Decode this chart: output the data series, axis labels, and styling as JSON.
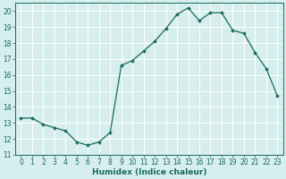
{
  "x": [
    0,
    1,
    2,
    3,
    4,
    5,
    6,
    7,
    8,
    9,
    10,
    11,
    12,
    13,
    14,
    15,
    16,
    17,
    18,
    19,
    20,
    21,
    22,
    23
  ],
  "y": [
    13.3,
    13.3,
    12.9,
    12.7,
    12.5,
    11.8,
    11.6,
    11.8,
    12.4,
    16.6,
    16.9,
    17.5,
    18.1,
    18.9,
    19.8,
    20.2,
    19.4,
    19.9,
    19.9,
    18.8,
    18.6,
    17.4,
    16.4,
    14.7
  ],
  "line_color": "#1a6b5a",
  "marker": "D",
  "marker_size": 2,
  "bg_color": "#d6eeee",
  "grid_major_color": "#ffffff",
  "grid_minor_color": "#c8e4e4",
  "xlabel": "Humidex (Indice chaleur)",
  "xlim": [
    -0.5,
    23.5
  ],
  "ylim": [
    11,
    20.5
  ],
  "yticks": [
    11,
    12,
    13,
    14,
    15,
    16,
    17,
    18,
    19,
    20
  ],
  "xticks": [
    0,
    1,
    2,
    3,
    4,
    5,
    6,
    7,
    8,
    9,
    10,
    11,
    12,
    13,
    14,
    15,
    16,
    17,
    18,
    19,
    20,
    21,
    22,
    23
  ],
  "tick_color": "#1a6b5a",
  "label_fontsize": 6.5,
  "tick_fontsize": 5.5
}
